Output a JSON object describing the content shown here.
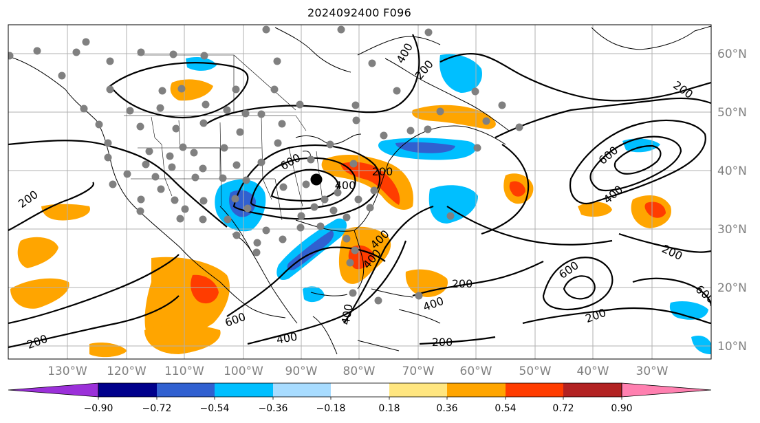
{
  "title": "2024092400 F096",
  "map": {
    "longitude_labels": [
      "130°W",
      "120°W",
      "110°W",
      "100°W",
      "90°W",
      "80°W",
      "70°W",
      "60°W",
      "50°W",
      "40°W",
      "30°W"
    ],
    "latitude_labels": [
      "60°N",
      "50°N",
      "40°N",
      "30°N",
      "20°N",
      "10°N"
    ],
    "contour_labels": [
      "400",
      "200",
      "200",
      "200",
      "600",
      "400",
      "600",
      "400",
      "200",
      "400",
      "600",
      "400",
      "200",
      "400",
      "600",
      "200",
      "400",
      "200",
      "200",
      "200",
      "600",
      "400"
    ],
    "colors": {
      "gridline": "#b0b0b0",
      "tick_label": "#808080",
      "contour": "#000000",
      "station_marker": "#808080",
      "center_marker": "#000000"
    }
  },
  "colorbar": {
    "ticks": [
      "−0.90",
      "−0.72",
      "−0.54",
      "−0.36",
      "−0.18",
      "0.18",
      "0.36",
      "0.54",
      "0.72",
      "0.90"
    ],
    "colors": [
      "#9b30d9",
      "#00008b",
      "#3060d0",
      "#00bfff",
      "#a8dcff",
      "#ffffff",
      "#ffe680",
      "#ffa500",
      "#ff3c00",
      "#b22222",
      "#ff80b0"
    ]
  }
}
